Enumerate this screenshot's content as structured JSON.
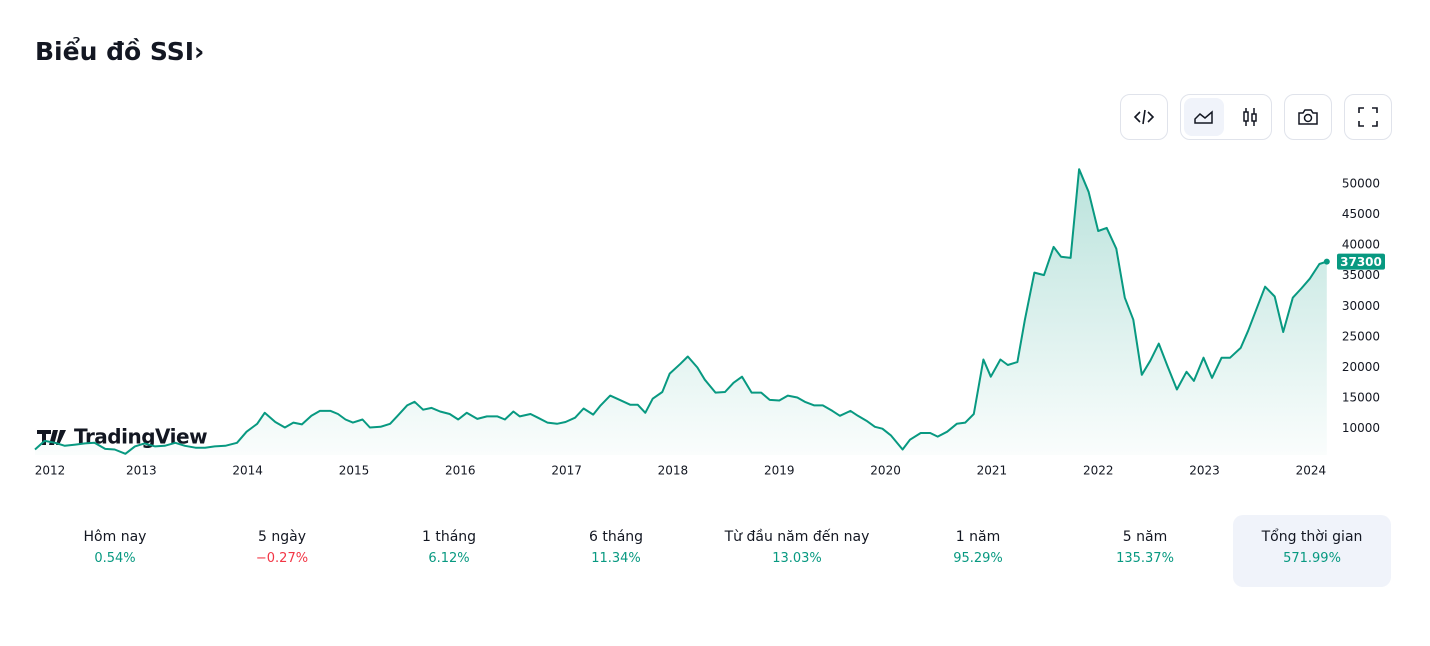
{
  "header": {
    "title": "Biểu đồ SSI›"
  },
  "watermark": "TradingView",
  "chart_data": {
    "type": "area",
    "x": [
      2012.0,
      2012.09,
      2012.19,
      2012.28,
      2012.38,
      2012.47,
      2012.56,
      2012.66,
      2012.75,
      2012.85,
      2012.94,
      2013.03,
      2013.13,
      2013.22,
      2013.32,
      2013.41,
      2013.51,
      2013.6,
      2013.69,
      2013.79,
      2013.9,
      2013.99,
      2014.09,
      2014.16,
      2014.26,
      2014.35,
      2014.43,
      2014.51,
      2014.6,
      2014.68,
      2014.78,
      2014.85,
      2014.92,
      2014.99,
      2015.08,
      2015.15,
      2015.25,
      2015.34,
      2015.41,
      2015.5,
      2015.57,
      2015.65,
      2015.73,
      2015.81,
      2015.9,
      2015.98,
      2016.06,
      2016.16,
      2016.25,
      2016.35,
      2016.42,
      2016.5,
      2016.56,
      2016.66,
      2016.73,
      2016.82,
      2016.91,
      2016.99,
      2017.08,
      2017.16,
      2017.25,
      2017.32,
      2017.41,
      2017.5,
      2017.6,
      2017.67,
      2017.74,
      2017.81,
      2017.9,
      2017.97,
      2018.07,
      2018.14,
      2018.23,
      2018.3,
      2018.4,
      2018.49,
      2018.57,
      2018.65,
      2018.74,
      2018.83,
      2018.91,
      2019.0,
      2019.08,
      2019.17,
      2019.24,
      2019.33,
      2019.41,
      2019.5,
      2019.57,
      2019.67,
      2019.74,
      2019.82,
      2019.9,
      2019.97,
      2020.05,
      2020.16,
      2020.23,
      2020.33,
      2020.42,
      2020.49,
      2020.58,
      2020.67,
      2020.75,
      2020.83,
      2020.92,
      2020.99,
      2021.08,
      2021.15,
      2021.24,
      2021.31,
      2021.4,
      2021.49,
      2021.58,
      2021.65,
      2021.74,
      2021.82,
      2021.91,
      2022.0,
      2022.08,
      2022.17,
      2022.25,
      2022.33,
      2022.41,
      2022.49,
      2022.57,
      2022.65,
      2022.74,
      2022.83,
      2022.9,
      2022.99,
      2023.07,
      2023.16,
      2023.24,
      2023.34,
      2023.41,
      2023.49,
      2023.57,
      2023.66,
      2023.74,
      2023.83,
      2023.91,
      2023.99,
      2024.08,
      2024.15
    ],
    "values": [
      6600,
      8000,
      7700,
      7200,
      7400,
      7600,
      7700,
      6700,
      6600,
      5900,
      7100,
      7600,
      7100,
      7200,
      7700,
      7200,
      6900,
      6900,
      7100,
      7200,
      7700,
      9500,
      10800,
      12600,
      11100,
      10200,
      11000,
      10700,
      12100,
      12900,
      12900,
      12400,
      11500,
      11000,
      11500,
      10200,
      10300,
      10800,
      12100,
      13800,
      14400,
      13100,
      13400,
      12800,
      12400,
      11500,
      12600,
      11600,
      12000,
      12000,
      11500,
      12800,
      12000,
      12400,
      11800,
      11000,
      10800,
      11100,
      11800,
      13300,
      12300,
      13800,
      15400,
      14700,
      13900,
      13900,
      12600,
      14900,
      16000,
      19000,
      20600,
      21800,
      20000,
      18000,
      15900,
      16000,
      17500,
      18500,
      15900,
      15900,
      14700,
      14600,
      15400,
      15100,
      14400,
      13800,
      13800,
      12900,
      12100,
      12900,
      12100,
      11300,
      10300,
      10000,
      8900,
      6600,
      8200,
      9300,
      9300,
      8700,
      9500,
      10800,
      11000,
      12400,
      21300,
      18500,
      21300,
      20400,
      20900,
      27800,
      35500,
      35100,
      39700,
      38100,
      37900,
      52400,
      48700,
      42300,
      42800,
      39400,
      31400,
      27800,
      18800,
      21100,
      23900,
      20300,
      16400,
      19300,
      17800,
      21600,
      18300,
      21600,
      21600,
      23200,
      26000,
      29600,
      33200,
      31600,
      25800,
      31400,
      32900,
      34500,
      36900,
      37300
    ],
    "color": "#089981",
    "xlim": [
      2012,
      2024.18
    ],
    "xticks": [
      2012,
      2013,
      2014,
      2015,
      2016,
      2017,
      2018,
      2019,
      2020,
      2021,
      2022,
      2023,
      2024
    ],
    "ylim": [
      5700,
      53900
    ],
    "yticks": [
      10000,
      15000,
      20000,
      25000,
      30000,
      35000,
      40000,
      45000,
      50000
    ]
  },
  "periods": [
    {
      "label": "Hôm nay",
      "change": "0.54%",
      "color": "#089981"
    },
    {
      "label": "5 ngày",
      "change": "−0.27%",
      "color": "#f23645"
    },
    {
      "label": "1 tháng",
      "change": "6.12%",
      "color": "#089981"
    },
    {
      "label": "6 tháng",
      "change": "11.34%",
      "color": "#089981"
    },
    {
      "label": "Từ đầu năm đến nay",
      "change": "13.03%",
      "color": "#089981"
    },
    {
      "label": "1 năm",
      "change": "95.29%",
      "color": "#089981"
    },
    {
      "label": "5 năm",
      "change": "135.37%",
      "color": "#089981"
    },
    {
      "label": "Tổng thời gian",
      "change": "571.99%",
      "color": "#089981"
    }
  ],
  "selected_period": 7
}
